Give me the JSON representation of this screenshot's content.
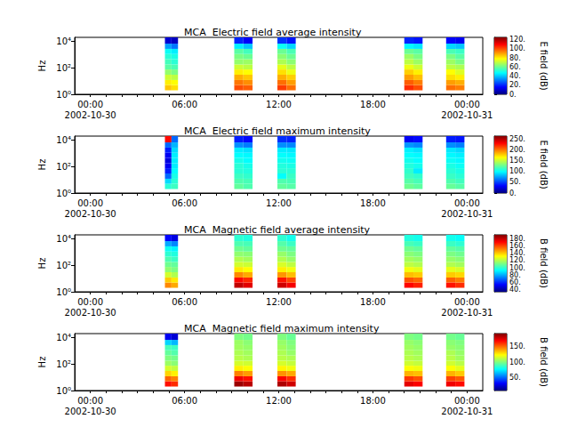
{
  "chart_data": [
    {
      "type": "heatmap",
      "title": "MCA  Electric field average intensity",
      "y_label": "Hz",
      "log": "y",
      "grid": false,
      "xlim": [
        "2002-10-29 23:00",
        "2002-10-31 01:00"
      ],
      "xticks": [
        {
          "value": "2002-10-30 00:00",
          "label": "00:00\n2002-10-30"
        },
        {
          "value": "2002-10-30 06:00",
          "label": "06:00"
        },
        {
          "value": "2002-10-30 12:00",
          "label": "12:00"
        },
        {
          "value": "2002-10-30 18:00",
          "label": "18:00"
        },
        {
          "value": "2002-10-31 00:00",
          "label": "00:00\n2002-10-31"
        }
      ],
      "ylim": [
        1,
        20000
      ],
      "yticks": [
        {
          "value": 1,
          "label": "10⁰"
        },
        {
          "value": 100,
          "label": "10²"
        },
        {
          "value": 10000,
          "label": "10⁴"
        }
      ],
      "x_bins": [
        [
          "2002-10-30 04:45",
          "2002-10-30 05:10"
        ],
        [
          "2002-10-30 05:10",
          "2002-10-30 05:35"
        ],
        [
          "2002-10-30 09:10",
          "2002-10-30 09:45"
        ],
        [
          "2002-10-30 09:45",
          "2002-10-30 10:20"
        ],
        [
          "2002-10-30 11:55",
          "2002-10-30 12:30"
        ],
        [
          "2002-10-30 12:30",
          "2002-10-30 13:05"
        ],
        [
          "2002-10-30 20:00",
          "2002-10-30 20:35"
        ],
        [
          "2002-10-30 20:35",
          "2002-10-30 21:10"
        ],
        [
          "2002-10-30 22:40",
          "2002-10-30 23:15"
        ],
        [
          "2002-10-30 23:15",
          "2002-10-30 23:50"
        ]
      ],
      "y_bins": [
        2,
        5,
        12,
        30,
        75,
        180,
        450,
        1100,
        2700,
        6700,
        20000
      ],
      "cells": [
        [
          85,
          80,
          72,
          65,
          58,
          55,
          52,
          48,
          35,
          10
        ],
        [
          82,
          78,
          70,
          62,
          56,
          52,
          50,
          45,
          30,
          8
        ],
        [
          100,
          95,
          88,
          80,
          72,
          65,
          62,
          58,
          45,
          20
        ],
        [
          98,
          92,
          85,
          78,
          70,
          66,
          60,
          55,
          40,
          15
        ],
        [
          102,
          96,
          88,
          82,
          75,
          68,
          64,
          60,
          48,
          22
        ],
        [
          96,
          90,
          84,
          76,
          70,
          64,
          60,
          56,
          42,
          18
        ],
        [
          104,
          98,
          90,
          84,
          76,
          70,
          66,
          60,
          46,
          20
        ],
        [
          100,
          94,
          86,
          80,
          72,
          66,
          62,
          58,
          44,
          18
        ],
        [
          96,
          90,
          82,
          78,
          70,
          66,
          62,
          56,
          42,
          16
        ],
        [
          94,
          88,
          80,
          74,
          68,
          62,
          58,
          54,
          40,
          14
        ]
      ],
      "colorbar": {
        "label": "E field (dB)",
        "range": [
          0,
          125
        ],
        "ticks": [
          {
            "value": 0,
            "label": "0."
          },
          {
            "value": 20,
            "label": "20."
          },
          {
            "value": 40,
            "label": "40."
          },
          {
            "value": 60,
            "label": "60."
          },
          {
            "value": 80,
            "label": "80."
          },
          {
            "value": 100,
            "label": "100."
          },
          {
            "value": 120,
            "label": "120."
          }
        ]
      }
    },
    {
      "type": "heatmap",
      "title": "MCA  Electric field maximum intensity",
      "y_label": "Hz",
      "log": "y",
      "grid": false,
      "xlim": [
        "2002-10-29 23:00",
        "2002-10-31 01:00"
      ],
      "xticks": [
        {
          "value": "2002-10-30 00:00",
          "label": "00:00\n2002-10-30"
        },
        {
          "value": "2002-10-30 06:00",
          "label": "06:00"
        },
        {
          "value": "2002-10-30 12:00",
          "label": "12:00"
        },
        {
          "value": "2002-10-30 18:00",
          "label": "18:00"
        },
        {
          "value": "2002-10-31 00:00",
          "label": "00:00\n2002-10-31"
        }
      ],
      "ylim": [
        1,
        20000
      ],
      "yticks": [
        {
          "value": 1,
          "label": "10⁰"
        },
        {
          "value": 100,
          "label": "10²"
        },
        {
          "value": 10000,
          "label": "10⁴"
        }
      ],
      "x_bins": [
        [
          "2002-10-30 04:45",
          "2002-10-30 05:10"
        ],
        [
          "2002-10-30 05:10",
          "2002-10-30 05:35"
        ],
        [
          "2002-10-30 09:10",
          "2002-10-30 09:45"
        ],
        [
          "2002-10-30 09:45",
          "2002-10-30 10:20"
        ],
        [
          "2002-10-30 11:55",
          "2002-10-30 12:30"
        ],
        [
          "2002-10-30 12:30",
          "2002-10-30 13:05"
        ],
        [
          "2002-10-30 20:00",
          "2002-10-30 20:35"
        ],
        [
          "2002-10-30 20:35",
          "2002-10-30 21:10"
        ],
        [
          "2002-10-30 22:40",
          "2002-10-30 23:15"
        ],
        [
          "2002-10-30 23:15",
          "2002-10-30 23:50"
        ]
      ],
      "y_bins": [
        2,
        5,
        12,
        30,
        75,
        180,
        450,
        1100,
        2700,
        6700,
        20000
      ],
      "cells": [
        [
          110,
          90,
          60,
          40,
          30,
          25,
          30,
          40,
          60,
          230
        ],
        [
          115,
          110,
          105,
          100,
          95,
          95,
          95,
          90,
          80,
          60
        ],
        [
          125,
          120,
          115,
          110,
          110,
          105,
          100,
          95,
          70,
          40
        ],
        [
          120,
          118,
          112,
          108,
          105,
          100,
          98,
          92,
          65,
          35
        ],
        [
          125,
          120,
          100,
          110,
          108,
          104,
          100,
          95,
          70,
          45
        ],
        [
          122,
          118,
          114,
          110,
          106,
          102,
          98,
          94,
          68,
          42
        ],
        [
          128,
          122,
          116,
          112,
          108,
          104,
          100,
          96,
          72,
          30
        ],
        [
          124,
          118,
          112,
          95,
          104,
          100,
          98,
          92,
          68,
          35
        ],
        [
          126,
          120,
          114,
          110,
          106,
          102,
          98,
          94,
          70,
          40
        ],
        [
          122,
          116,
          110,
          106,
          102,
          98,
          96,
          90,
          66,
          38
        ]
      ],
      "colorbar": {
        "label": "E field (dB)",
        "range": [
          0,
          265
        ],
        "ticks": [
          {
            "value": 0,
            "label": "0."
          },
          {
            "value": 50,
            "label": "50."
          },
          {
            "value": 100,
            "label": "100."
          },
          {
            "value": 150,
            "label": "150."
          },
          {
            "value": 200,
            "label": "200."
          },
          {
            "value": 250,
            "label": "250."
          }
        ]
      }
    },
    {
      "type": "heatmap",
      "title": "MCA  Magnetic field average intensity",
      "y_label": "Hz",
      "log": "y",
      "grid": false,
      "xlim": [
        "2002-10-29 23:00",
        "2002-10-31 01:00"
      ],
      "xticks": [
        {
          "value": "2002-10-30 00:00",
          "label": "00:00\n2002-10-30"
        },
        {
          "value": "2002-10-30 06:00",
          "label": "06:00"
        },
        {
          "value": "2002-10-30 12:00",
          "label": "12:00"
        },
        {
          "value": "2002-10-30 18:00",
          "label": "18:00"
        },
        {
          "value": "2002-10-31 00:00",
          "label": "00:00\n2002-10-31"
        }
      ],
      "ylim": [
        1,
        20000
      ],
      "yticks": [
        {
          "value": 1,
          "label": "10⁰"
        },
        {
          "value": 100,
          "label": "10²"
        },
        {
          "value": 10000,
          "label": "10⁴"
        }
      ],
      "x_bins": [
        [
          "2002-10-30 04:45",
          "2002-10-30 05:10"
        ],
        [
          "2002-10-30 05:10",
          "2002-10-30 05:35"
        ],
        [
          "2002-10-30 09:10",
          "2002-10-30 09:45"
        ],
        [
          "2002-10-30 09:45",
          "2002-10-30 10:20"
        ],
        [
          "2002-10-30 11:55",
          "2002-10-30 12:30"
        ],
        [
          "2002-10-30 12:30",
          "2002-10-30 13:05"
        ],
        [
          "2002-10-30 20:00",
          "2002-10-30 20:35"
        ],
        [
          "2002-10-30 20:35",
          "2002-10-30 21:10"
        ],
        [
          "2002-10-30 22:40",
          "2002-10-30 23:15"
        ],
        [
          "2002-10-30 23:15",
          "2002-10-30 23:50"
        ]
      ],
      "y_bins": [
        2,
        5,
        12,
        30,
        75,
        180,
        450,
        1100,
        2700,
        6700,
        20000
      ],
      "cells": [
        [
          150,
          140,
          125,
          115,
          110,
          105,
          100,
          95,
          80,
          55
        ],
        [
          145,
          135,
          120,
          112,
          108,
          102,
          98,
          92,
          75,
          50
        ],
        [
          180,
          170,
          150,
          135,
          125,
          120,
          115,
          110,
          105,
          100
        ],
        [
          175,
          165,
          145,
          132,
          124,
          118,
          114,
          108,
          104,
          98
        ],
        [
          178,
          168,
          148,
          134,
          126,
          120,
          116,
          110,
          106,
          100
        ],
        [
          172,
          160,
          142,
          130,
          122,
          116,
          112,
          108,
          102,
          96
        ],
        [
          170,
          158,
          142,
          130,
          122,
          118,
          114,
          110,
          104,
          98
        ],
        [
          166,
          155,
          140,
          128,
          120,
          116,
          112,
          108,
          102,
          96
        ],
        [
          168,
          156,
          140,
          128,
          120,
          116,
          112,
          108,
          102,
          96
        ],
        [
          164,
          152,
          138,
          126,
          118,
          114,
          110,
          106,
          100,
          94
        ]
      ],
      "colorbar": {
        "label": "B field (dB)",
        "range": [
          35,
          190
        ],
        "ticks": [
          {
            "value": 40,
            "label": "40."
          },
          {
            "value": 60,
            "label": "60."
          },
          {
            "value": 80,
            "label": "80."
          },
          {
            "value": 100,
            "label": "100."
          },
          {
            "value": 120,
            "label": "120."
          },
          {
            "value": 140,
            "label": "140."
          },
          {
            "value": 160,
            "label": "160."
          },
          {
            "value": 180,
            "label": "180."
          }
        ]
      }
    },
    {
      "type": "heatmap",
      "title": "MCA  Magnetic field maximum intensity",
      "y_label": "Hz",
      "log": "y",
      "grid": false,
      "xlim": [
        "2002-10-29 23:00",
        "2002-10-31 01:00"
      ],
      "xticks": [
        {
          "value": "2002-10-30 00:00",
          "label": "00:00\n2002-10-30"
        },
        {
          "value": "2002-10-30 06:00",
          "label": "06:00"
        },
        {
          "value": "2002-10-30 12:00",
          "label": "12:00"
        },
        {
          "value": "2002-10-30 18:00",
          "label": "18:00"
        },
        {
          "value": "2002-10-31 00:00",
          "label": "00:00\n2002-10-31"
        }
      ],
      "ylim": [
        1,
        20000
      ],
      "yticks": [
        {
          "value": 1,
          "label": "10⁰"
        },
        {
          "value": 100,
          "label": "10²"
        },
        {
          "value": 10000,
          "label": "10⁴"
        }
      ],
      "x_bins": [
        [
          "2002-10-30 04:45",
          "2002-10-30 05:10"
        ],
        [
          "2002-10-30 05:10",
          "2002-10-30 05:35"
        ],
        [
          "2002-10-30 09:10",
          "2002-10-30 09:45"
        ],
        [
          "2002-10-30 09:45",
          "2002-10-30 10:20"
        ],
        [
          "2002-10-30 11:55",
          "2002-10-30 12:30"
        ],
        [
          "2002-10-30 12:30",
          "2002-10-30 13:05"
        ],
        [
          "2002-10-30 20:00",
          "2002-10-30 20:35"
        ],
        [
          "2002-10-30 20:35",
          "2002-10-30 21:10"
        ],
        [
          "2002-10-30 22:40",
          "2002-10-30 23:15"
        ],
        [
          "2002-10-30 23:15",
          "2002-10-30 23:50"
        ]
      ],
      "y_bins": [
        2,
        5,
        12,
        30,
        75,
        180,
        450,
        1100,
        2700,
        6700,
        20000
      ],
      "cells": [
        [
          165,
          150,
          130,
          115,
          105,
          100,
          95,
          90,
          70,
          30
        ],
        [
          160,
          145,
          125,
          112,
          102,
          98,
          92,
          88,
          65,
          25
        ],
        [
          185,
          170,
          145,
          125,
          115,
          110,
          108,
          106,
          105,
          100
        ],
        [
          180,
          165,
          140,
          122,
          114,
          108,
          106,
          104,
          102,
          98
        ],
        [
          182,
          168,
          142,
          124,
          115,
          110,
          108,
          106,
          104,
          100
        ],
        [
          176,
          160,
          138,
          120,
          112,
          108,
          104,
          102,
          100,
          96
        ],
        [
          172,
          158,
          136,
          122,
          114,
          110,
          108,
          106,
          104,
          100
        ],
        [
          168,
          154,
          134,
          120,
          112,
          108,
          106,
          104,
          102,
          98
        ],
        [
          170,
          156,
          136,
          122,
          114,
          110,
          108,
          104,
          102,
          98
        ],
        [
          166,
          152,
          132,
          118,
          110,
          106,
          104,
          102,
          100,
          96
        ]
      ],
      "colorbar": {
        "label": "B field (dB)",
        "range": [
          10,
          190
        ],
        "ticks": [
          {
            "value": 50,
            "label": "50."
          },
          {
            "value": 100,
            "label": "100."
          },
          {
            "value": 150,
            "label": "150."
          }
        ]
      }
    }
  ]
}
